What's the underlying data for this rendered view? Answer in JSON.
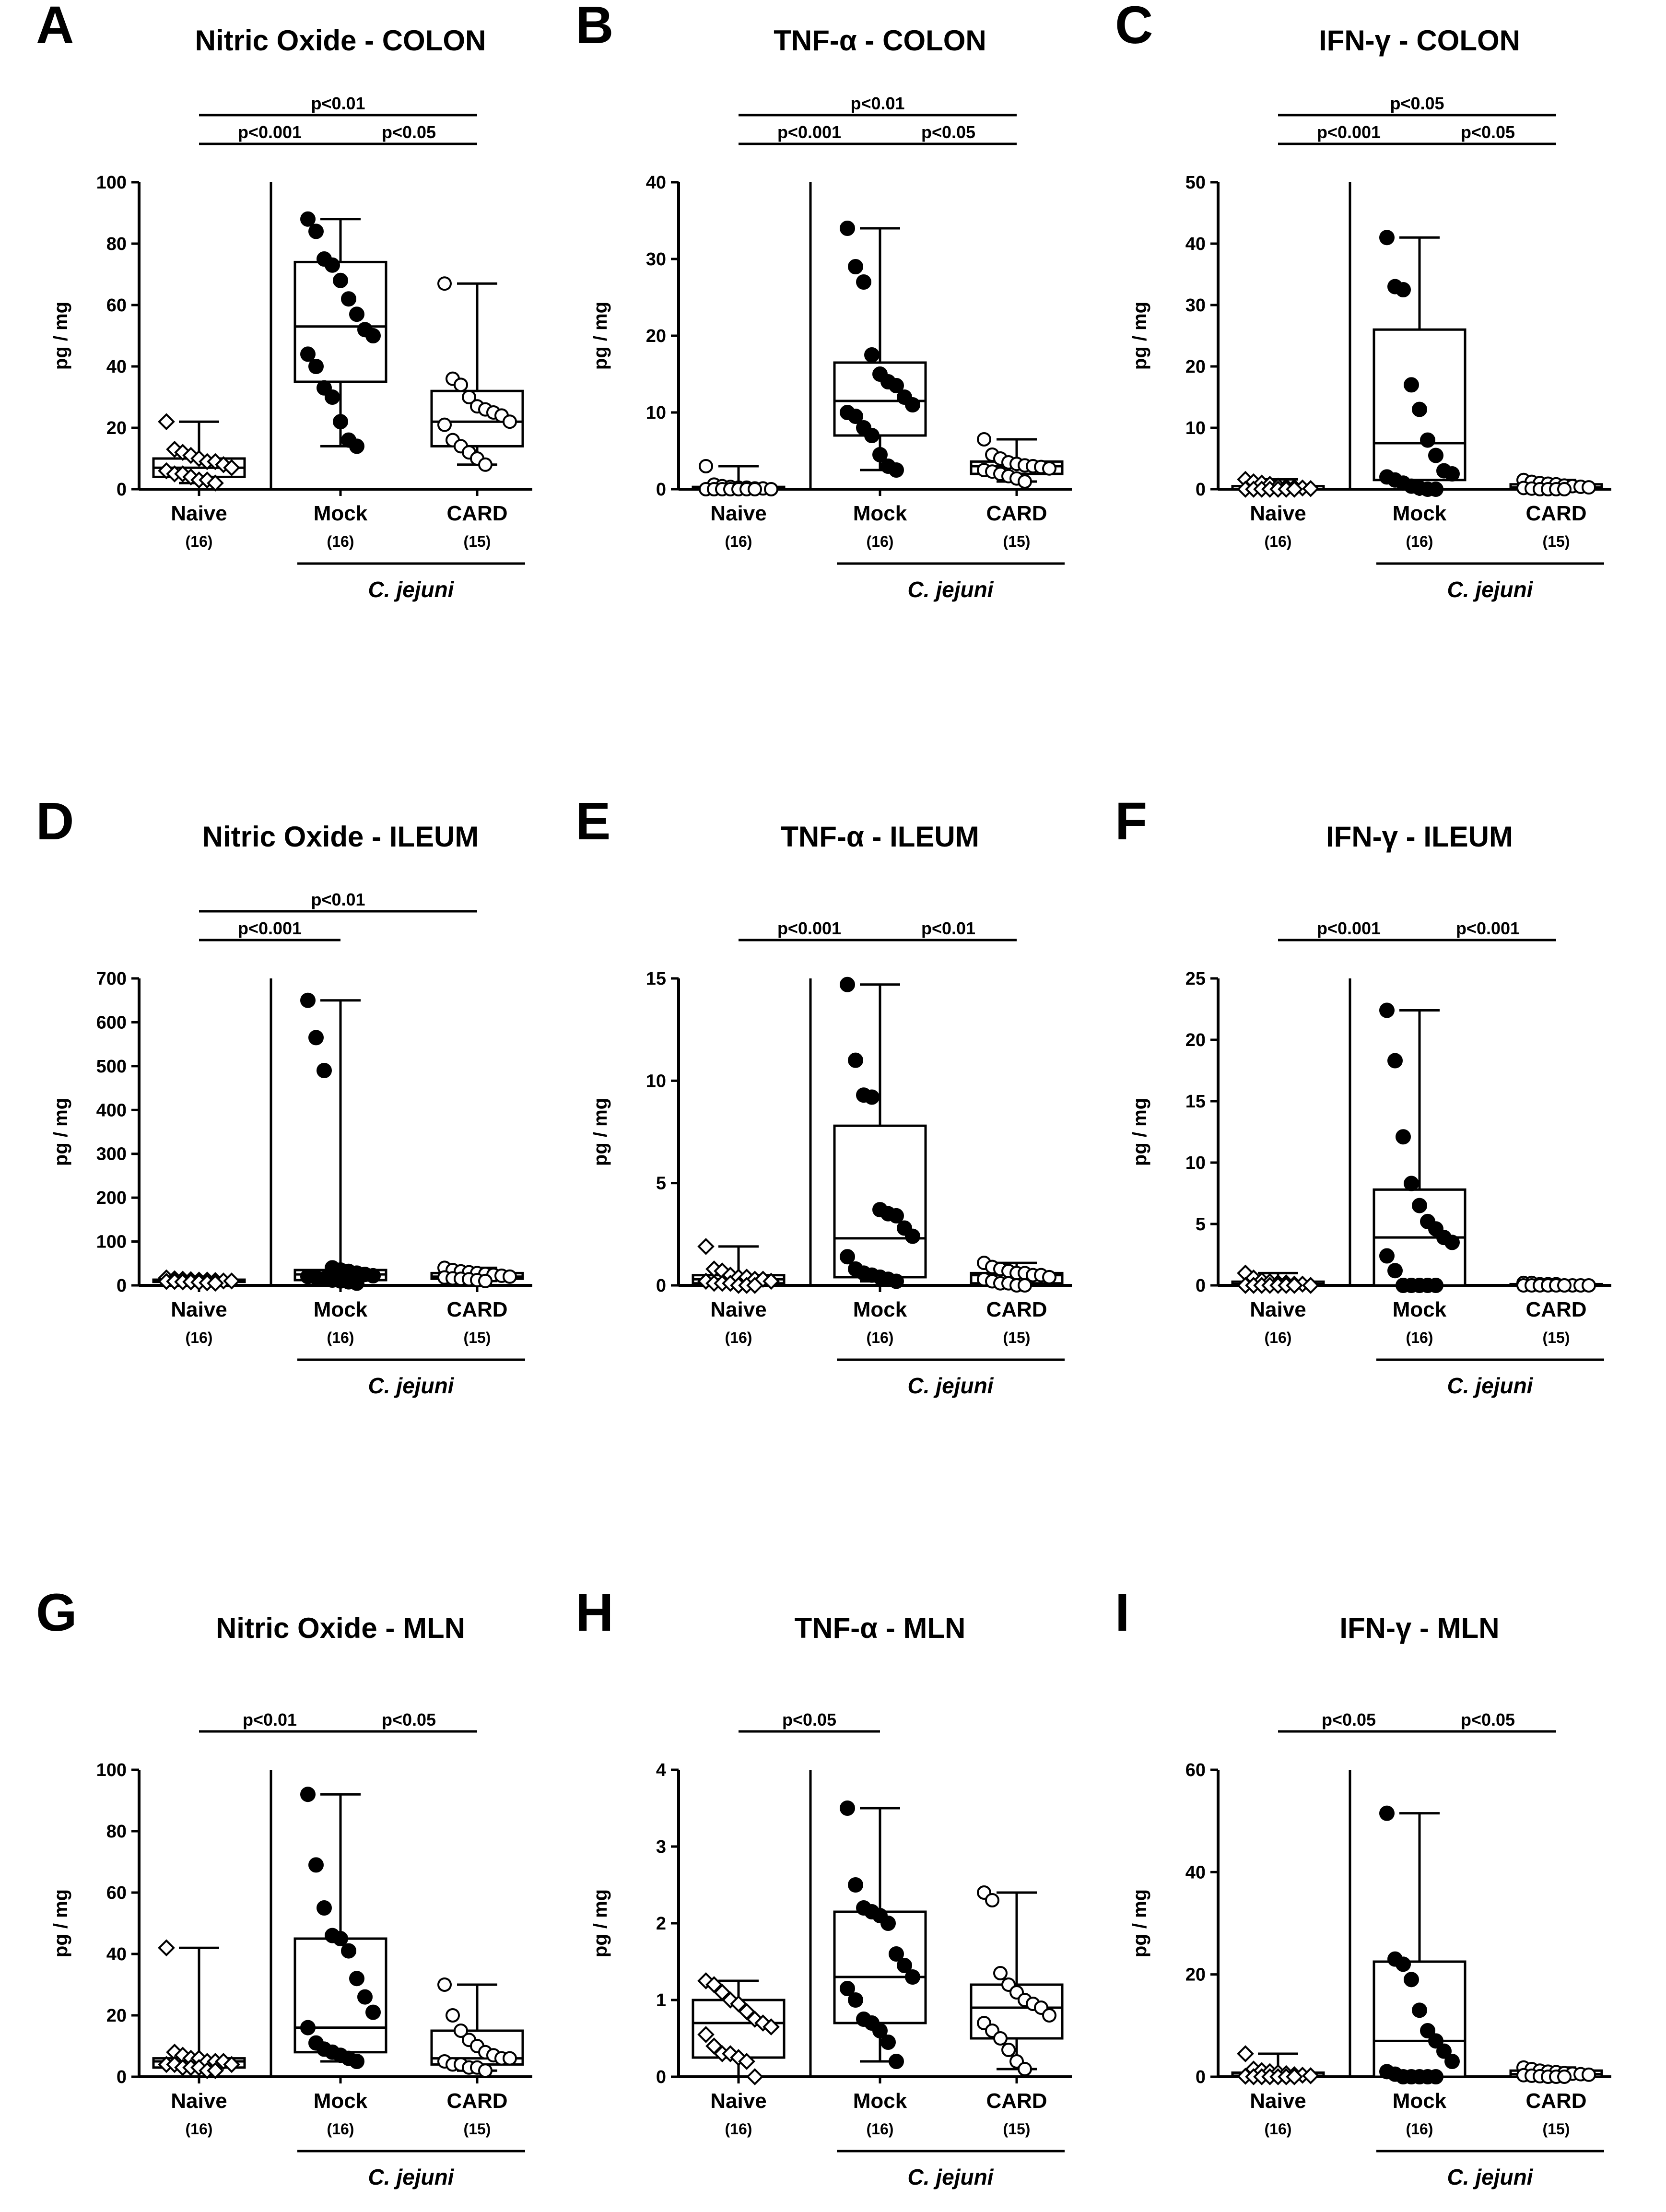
{
  "figure": {
    "background": "#ffffff",
    "ink": "#000000",
    "open_marker_fill": "#ffffff"
  },
  "chart_data": [
    {
      "id": "A",
      "type": "box",
      "title": "Nitric Oxide - COLON",
      "ylabel": "pg / mg",
      "ylim": [
        0,
        100
      ],
      "yticks": [
        0,
        20,
        40,
        60,
        80,
        100
      ],
      "categories": [
        "Naive",
        "Mock",
        "CARD"
      ],
      "counts": [
        "(16)",
        "(16)",
        "(15)"
      ],
      "group_label": "C. jejuni",
      "series": [
        {
          "name": "Naive",
          "marker": "diamond-open",
          "min": 2,
          "q1": 4,
          "median": 7,
          "q3": 10,
          "max": 22,
          "points": [
            22,
            13,
            12,
            11,
            10,
            9,
            9,
            8,
            7,
            6,
            5,
            5,
            4,
            3,
            3,
            2
          ]
        },
        {
          "name": "Mock",
          "marker": "circle-filled",
          "min": 14,
          "q1": 35,
          "median": 53,
          "q3": 74,
          "max": 88,
          "points": [
            88,
            84,
            75,
            73,
            68,
            62,
            57,
            52,
            50,
            44,
            40,
            33,
            30,
            22,
            16,
            14
          ]
        },
        {
          "name": "CARD",
          "marker": "circle-open",
          "min": 8,
          "q1": 14,
          "median": 22,
          "q3": 32,
          "max": 67,
          "points": [
            67,
            36,
            34,
            30,
            27,
            26,
            25,
            24,
            22,
            21,
            16,
            14,
            12,
            10,
            8
          ]
        }
      ],
      "comparisons": [
        {
          "from": 0,
          "to": 1,
          "label": "p<0.001",
          "level": 1
        },
        {
          "from": 1,
          "to": 2,
          "label": "p<0.05",
          "level": 1
        },
        {
          "from": 0,
          "to": 2,
          "label": "p<0.01",
          "level": 2
        }
      ]
    },
    {
      "id": "B",
      "type": "box",
      "title": "TNF-α - COLON",
      "ylabel": "pg / mg",
      "ylim": [
        0,
        40
      ],
      "yticks": [
        0,
        10,
        20,
        30,
        40
      ],
      "categories": [
        "Naive",
        "Mock",
        "CARD"
      ],
      "counts": [
        "(16)",
        "(16)",
        "(15)"
      ],
      "group_label": "C. jejuni",
      "series": [
        {
          "name": "Naive",
          "marker": "circle-open",
          "min": 0,
          "q1": 0,
          "median": 0,
          "q3": 0.3,
          "max": 3,
          "points": [
            3,
            0.6,
            0.4,
            0.3,
            0.2,
            0.2,
            0.1,
            0.1,
            0,
            0,
            0,
            0,
            0,
            0,
            0,
            0
          ]
        },
        {
          "name": "Mock",
          "marker": "circle-filled",
          "min": 2.5,
          "q1": 7,
          "median": 11.5,
          "q3": 16.5,
          "max": 34,
          "points": [
            34,
            29,
            27,
            17.5,
            15,
            14,
            13.5,
            12,
            11,
            10,
            9.5,
            8,
            7,
            4.5,
            3,
            2.5
          ]
        },
        {
          "name": "CARD",
          "marker": "circle-open",
          "min": 1,
          "q1": 2,
          "median": 3,
          "q3": 3.6,
          "max": 6.5,
          "points": [
            6.5,
            4.5,
            4,
            3.5,
            3.3,
            3.1,
            3,
            2.9,
            2.7,
            2.5,
            2.3,
            2,
            1.7,
            1.4,
            1
          ]
        }
      ],
      "comparisons": [
        {
          "from": 0,
          "to": 1,
          "label": "p<0.001",
          "level": 1
        },
        {
          "from": 1,
          "to": 2,
          "label": "p<0.05",
          "level": 1
        },
        {
          "from": 0,
          "to": 2,
          "label": "p<0.01",
          "level": 2
        }
      ]
    },
    {
      "id": "C",
      "type": "box",
      "title": "IFN-γ - COLON",
      "ylabel": "pg / mg",
      "ylim": [
        0,
        50
      ],
      "yticks": [
        0,
        10,
        20,
        30,
        40,
        50
      ],
      "categories": [
        "Naive",
        "Mock",
        "CARD"
      ],
      "counts": [
        "(16)",
        "(16)",
        "(15)"
      ],
      "group_label": "C. jejuni",
      "series": [
        {
          "name": "Naive",
          "marker": "diamond-open",
          "min": 0,
          "q1": 0,
          "median": 0,
          "q3": 0.5,
          "max": 1.6,
          "points": [
            1.6,
            1.2,
            1,
            0.8,
            0.5,
            0.4,
            0.3,
            0.2,
            0.1,
            0,
            0,
            0,
            0,
            0,
            0,
            0
          ]
        },
        {
          "name": "Mock",
          "marker": "circle-filled",
          "min": 0,
          "q1": 1.5,
          "median": 7.5,
          "q3": 26,
          "max": 41,
          "points": [
            41,
            33,
            32.5,
            17,
            13,
            8,
            5.5,
            3,
            2.5,
            2,
            1.5,
            1,
            0.5,
            0.2,
            0,
            0
          ]
        },
        {
          "name": "CARD",
          "marker": "circle-open",
          "min": 0,
          "q1": 0,
          "median": 0.3,
          "q3": 0.8,
          "max": 1.5,
          "points": [
            1.5,
            1.2,
            1,
            0.9,
            0.8,
            0.6,
            0.5,
            0.4,
            0.3,
            0.2,
            0.1,
            0,
            0,
            0,
            0
          ]
        }
      ],
      "comparisons": [
        {
          "from": 0,
          "to": 1,
          "label": "p<0.001",
          "level": 1
        },
        {
          "from": 1,
          "to": 2,
          "label": "p<0.05",
          "level": 1
        },
        {
          "from": 0,
          "to": 2,
          "label": "p<0.05",
          "level": 2
        }
      ]
    },
    {
      "id": "D",
      "type": "box",
      "title": "Nitric Oxide - ILEUM",
      "ylabel": "pg / mg",
      "ylim": [
        0,
        700
      ],
      "yticks": [
        0,
        100,
        200,
        300,
        400,
        500,
        600,
        700
      ],
      "categories": [
        "Naive",
        "Mock",
        "CARD"
      ],
      "counts": [
        "(16)",
        "(16)",
        "(15)"
      ],
      "group_label": "C. jejuni",
      "series": [
        {
          "name": "Naive",
          "marker": "diamond-open",
          "min": 5,
          "q1": 8,
          "median": 10,
          "q3": 13,
          "max": 17,
          "points": [
            17,
            15,
            14,
            13,
            12,
            12,
            11,
            10,
            10,
            9,
            9,
            8,
            8,
            7,
            6,
            5
          ]
        },
        {
          "name": "Mock",
          "marker": "circle-filled",
          "min": 5,
          "q1": 12,
          "median": 25,
          "q3": 35,
          "max": 650,
          "points": [
            650,
            565,
            490,
            40,
            35,
            32,
            28,
            25,
            22,
            20,
            18,
            15,
            12,
            10,
            8,
            5
          ]
        },
        {
          "name": "CARD",
          "marker": "circle-open",
          "min": 10,
          "q1": 15,
          "median": 20,
          "q3": 28,
          "max": 40,
          "points": [
            40,
            35,
            32,
            30,
            28,
            26,
            24,
            22,
            20,
            18,
            16,
            15,
            14,
            12,
            10
          ]
        }
      ],
      "comparisons": [
        {
          "from": 0,
          "to": 1,
          "label": "p<0.001",
          "level": 1
        },
        {
          "from": 0,
          "to": 2,
          "label": "p<0.01",
          "level": 2
        }
      ]
    },
    {
      "id": "E",
      "type": "box",
      "title": "TNF-α - ILEUM",
      "ylabel": "pg / mg",
      "ylim": [
        0,
        15
      ],
      "yticks": [
        0,
        5,
        10,
        15
      ],
      "categories": [
        "Naive",
        "Mock",
        "CARD"
      ],
      "counts": [
        "(16)",
        "(16)",
        "(15)"
      ],
      "group_label": "C. jejuni",
      "series": [
        {
          "name": "Naive",
          "marker": "diamond-open",
          "min": 0,
          "q1": 0.1,
          "median": 0.3,
          "q3": 0.5,
          "max": 1.9,
          "points": [
            1.9,
            0.8,
            0.7,
            0.5,
            0.4,
            0.4,
            0.3,
            0.3,
            0.2,
            0.2,
            0.1,
            0.1,
            0.1,
            0,
            0,
            0
          ]
        },
        {
          "name": "Mock",
          "marker": "circle-filled",
          "min": 0.2,
          "q1": 0.4,
          "median": 2.3,
          "q3": 7.8,
          "max": 14.7,
          "points": [
            14.7,
            11,
            9.3,
            9.2,
            3.7,
            3.5,
            3.4,
            2.8,
            2.4,
            1.4,
            0.8,
            0.6,
            0.5,
            0.4,
            0.3,
            0.2
          ]
        },
        {
          "name": "CARD",
          "marker": "circle-open",
          "min": 0,
          "q1": 0.1,
          "median": 0.5,
          "q3": 0.6,
          "max": 1.1,
          "points": [
            1.1,
            0.9,
            0.8,
            0.7,
            0.6,
            0.6,
            0.5,
            0.5,
            0.4,
            0.3,
            0.2,
            0.1,
            0.1,
            0,
            0
          ]
        }
      ],
      "comparisons": [
        {
          "from": 0,
          "to": 1,
          "label": "p<0.001",
          "level": 1
        },
        {
          "from": 1,
          "to": 2,
          "label": "p<0.01",
          "level": 1
        }
      ]
    },
    {
      "id": "F",
      "type": "box",
      "title": "IFN-γ - ILEUM",
      "ylabel": "pg / mg",
      "ylim": [
        0,
        25
      ],
      "yticks": [
        0,
        5,
        10,
        15,
        20,
        25
      ],
      "categories": [
        "Naive",
        "Mock",
        "CARD"
      ],
      "counts": [
        "(16)",
        "(16)",
        "(15)"
      ],
      "group_label": "C. jejuni",
      "series": [
        {
          "name": "Naive",
          "marker": "diamond-open",
          "min": 0,
          "q1": 0,
          "median": 0.1,
          "q3": 0.3,
          "max": 1,
          "points": [
            1,
            0.6,
            0.4,
            0.3,
            0.2,
            0.2,
            0.1,
            0.1,
            0,
            0,
            0,
            0,
            0,
            0,
            0,
            0
          ]
        },
        {
          "name": "Mock",
          "marker": "circle-filled",
          "min": 0,
          "q1": 0,
          "median": 3.9,
          "q3": 7.8,
          "max": 22.4,
          "points": [
            22.4,
            18.3,
            12.1,
            8.3,
            6.5,
            5.2,
            4.6,
            3.9,
            3.5,
            2.4,
            1.2,
            0,
            0,
            0,
            0,
            0
          ]
        },
        {
          "name": "CARD",
          "marker": "circle-open",
          "min": 0,
          "q1": 0,
          "median": 0,
          "q3": 0.1,
          "max": 0.2,
          "points": [
            0.2,
            0.2,
            0.1,
            0.1,
            0.1,
            0,
            0,
            0,
            0,
            0,
            0,
            0,
            0,
            0,
            0
          ]
        }
      ],
      "comparisons": [
        {
          "from": 0,
          "to": 1,
          "label": "p<0.001",
          "level": 1
        },
        {
          "from": 1,
          "to": 2,
          "label": "p<0.001",
          "level": 1
        }
      ]
    },
    {
      "id": "G",
      "type": "box",
      "title": "Nitric Oxide - MLN",
      "ylabel": "pg / mg",
      "ylim": [
        0,
        100
      ],
      "yticks": [
        0,
        20,
        40,
        60,
        80,
        100
      ],
      "categories": [
        "Naive",
        "Mock",
        "CARD"
      ],
      "counts": [
        "(16)",
        "(16)",
        "(15)"
      ],
      "group_label": "C. jejuni",
      "series": [
        {
          "name": "Naive",
          "marker": "diamond-open",
          "min": 2,
          "q1": 3,
          "median": 5,
          "q3": 6,
          "max": 42,
          "points": [
            42,
            8,
            7,
            6,
            6,
            5,
            5,
            5,
            4,
            4,
            4,
            3,
            3,
            3,
            2,
            2
          ]
        },
        {
          "name": "Mock",
          "marker": "circle-filled",
          "min": 5,
          "q1": 8,
          "median": 16,
          "q3": 45,
          "max": 92,
          "points": [
            92,
            69,
            55,
            46,
            45,
            41,
            32,
            26,
            21,
            16,
            11,
            9,
            8,
            7,
            6,
            5
          ]
        },
        {
          "name": "CARD",
          "marker": "circle-open",
          "min": 2,
          "q1": 4,
          "median": 6,
          "q3": 15,
          "max": 30,
          "points": [
            30,
            20,
            15,
            12,
            10,
            8,
            7,
            6,
            6,
            5,
            4,
            4,
            3,
            3,
            2
          ]
        }
      ],
      "comparisons": [
        {
          "from": 0,
          "to": 1,
          "label": "p<0.01",
          "level": 1
        },
        {
          "from": 1,
          "to": 2,
          "label": "p<0.05",
          "level": 1
        }
      ]
    },
    {
      "id": "H",
      "type": "box",
      "title": "TNF-α - MLN",
      "ylabel": "pg / mg",
      "ylim": [
        0,
        4
      ],
      "yticks": [
        0,
        1,
        2,
        3,
        4
      ],
      "categories": [
        "Naive",
        "Mock",
        "CARD"
      ],
      "counts": [
        "(16)",
        "(16)",
        "(15)"
      ],
      "group_label": "C. jejuni",
      "series": [
        {
          "name": "Naive",
          "marker": "diamond-open",
          "min": 0,
          "q1": 0.25,
          "median": 0.7,
          "q3": 1,
          "max": 1.25,
          "points": [
            1.25,
            1.2,
            1.1,
            1,
            0.95,
            0.85,
            0.75,
            0.7,
            0.65,
            0.55,
            0.4,
            0.3,
            0.3,
            0.25,
            0.2,
            0
          ]
        },
        {
          "name": "Mock",
          "marker": "circle-filled",
          "min": 0.2,
          "q1": 0.7,
          "median": 1.3,
          "q3": 2.15,
          "max": 3.5,
          "points": [
            3.5,
            2.5,
            2.2,
            2.15,
            2.1,
            2,
            1.6,
            1.45,
            1.3,
            1.15,
            1,
            0.75,
            0.7,
            0.6,
            0.45,
            0.2
          ]
        },
        {
          "name": "CARD",
          "marker": "circle-open",
          "min": 0.1,
          "q1": 0.5,
          "median": 0.9,
          "q3": 1.2,
          "max": 2.4,
          "points": [
            2.4,
            2.3,
            1.35,
            1.2,
            1.1,
            1,
            0.95,
            0.9,
            0.8,
            0.7,
            0.6,
            0.5,
            0.35,
            0.2,
            0.1
          ]
        }
      ],
      "comparisons": [
        {
          "from": 0,
          "to": 1,
          "label": "p<0.05",
          "level": 1
        }
      ]
    },
    {
      "id": "I",
      "type": "box",
      "title": "IFN-γ - MLN",
      "ylabel": "pg / mg",
      "ylim": [
        0,
        60
      ],
      "yticks": [
        0,
        20,
        40,
        60
      ],
      "categories": [
        "Naive",
        "Mock",
        "CARD"
      ],
      "counts": [
        "(16)",
        "(16)",
        "(15)"
      ],
      "group_label": "C. jejuni",
      "series": [
        {
          "name": "Naive",
          "marker": "diamond-open",
          "min": 0,
          "q1": 0,
          "median": 0.2,
          "q3": 0.8,
          "max": 4.5,
          "points": [
            4.5,
            1.5,
            1.2,
            1,
            0.8,
            0.6,
            0.4,
            0.3,
            0.2,
            0.1,
            0,
            0,
            0,
            0,
            0,
            0
          ]
        },
        {
          "name": "Mock",
          "marker": "circle-filled",
          "min": 0,
          "q1": 0,
          "median": 7,
          "q3": 22.5,
          "max": 51.5,
          "points": [
            51.5,
            23,
            22,
            19,
            13,
            9,
            7,
            5,
            3,
            1,
            0.5,
            0,
            0,
            0,
            0,
            0
          ]
        },
        {
          "name": "CARD",
          "marker": "circle-open",
          "min": 0,
          "q1": 0,
          "median": 0.5,
          "q3": 1.2,
          "max": 1.8,
          "points": [
            1.8,
            1.5,
            1.2,
            1,
            0.9,
            0.7,
            0.6,
            0.5,
            0.4,
            0.3,
            0.2,
            0.1,
            0,
            0,
            0
          ]
        }
      ],
      "comparisons": [
        {
          "from": 0,
          "to": 1,
          "label": "p<0.05",
          "level": 1
        },
        {
          "from": 1,
          "to": 2,
          "label": "p<0.05",
          "level": 1
        }
      ]
    }
  ]
}
